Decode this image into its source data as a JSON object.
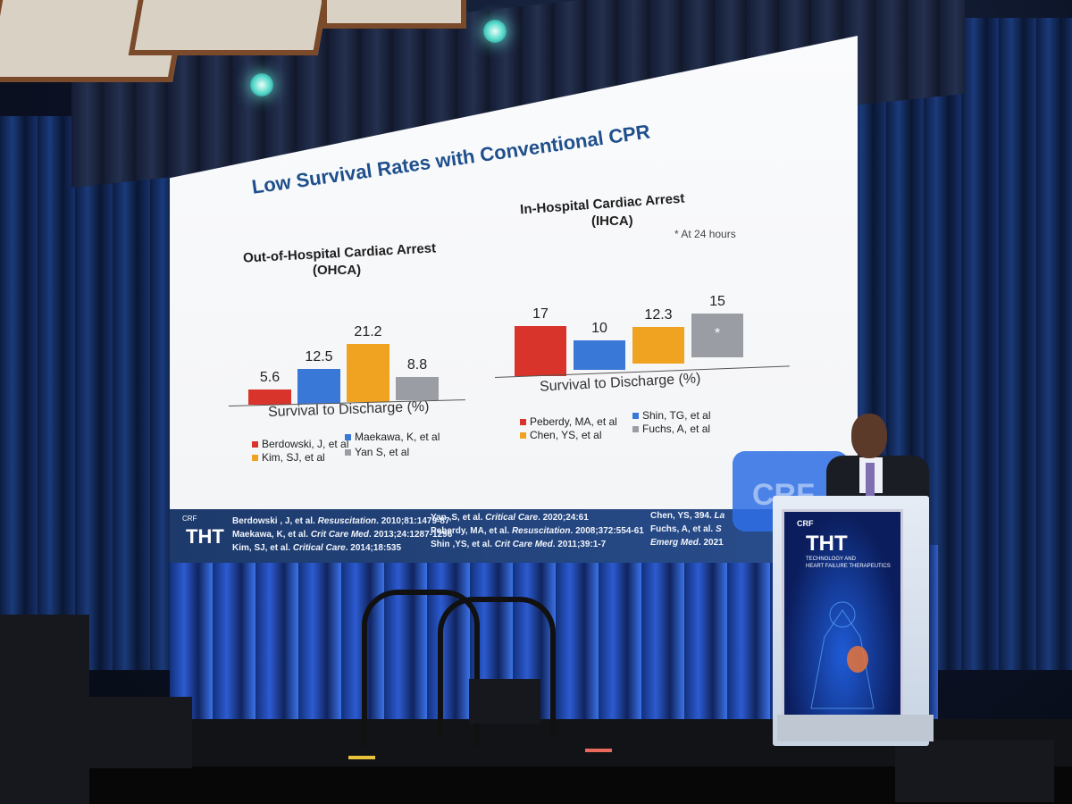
{
  "slide": {
    "title": "Low Survival Rates with Conventional CPR",
    "ohca": {
      "heading_line1": "Out-of-Hospital Cardiac Arrest",
      "heading_line2": "(OHCA)",
      "xlabel": "Survival to Discharge (%)",
      "bars": [
        {
          "label": "5.6",
          "value": 5.6,
          "color": "#d9342b"
        },
        {
          "label": "12.5",
          "value": 12.5,
          "color": "#3a78d8"
        },
        {
          "label": "21.2",
          "value": 21.2,
          "color": "#f0a321"
        },
        {
          "label": "8.8",
          "value": 8.8,
          "color": "#9a9da3"
        }
      ],
      "legend": [
        "Berdowski, J, et al",
        "Maekawa, K, et al",
        "Kim, SJ, et al",
        "Yan S, et al"
      ]
    },
    "ihca": {
      "heading_line1": "In-Hospital Cardiac Arrest",
      "heading_line2": "(IHCA)",
      "note": "* At 24 hours",
      "xlabel": "Survival to Discharge (%)",
      "bars": [
        {
          "label": "17",
          "value": 17,
          "color": "#d9342b"
        },
        {
          "label": "10",
          "value": 10,
          "color": "#3a78d8"
        },
        {
          "label": "12.3",
          "value": 12.3,
          "color": "#f0a321"
        },
        {
          "label": "15",
          "value": 15,
          "color": "#9a9da3",
          "mark": "*"
        }
      ],
      "legend": [
        "Peberdy, MA, et al",
        "Shin, TG, et al",
        "Chen, YS, et al",
        "Fuchs, A, et al"
      ]
    },
    "references": {
      "col1": [
        {
          "pre": "Berdowski , J, et al. ",
          "journal": "Resuscitation",
          "post": ". 2010;81:1479-87"
        },
        {
          "pre": "Maekawa, K, et al. ",
          "journal": "Crit Care Med",
          "post": ". 2013;24:1287-1296"
        },
        {
          "pre": "Kim, SJ, et al. ",
          "journal": "Critical Care",
          "post": ". 2014;18:535"
        }
      ],
      "col2": [
        {
          "pre": "Yan ,S, et al. ",
          "journal": "Critical Care",
          "post": ". 2020;24:61"
        },
        {
          "pre": "Peberdy, MA, et al. ",
          "journal": "Resuscitation",
          "post": ". 2008;372:554-61"
        },
        {
          "pre": "Shin ,YS, et al. ",
          "journal": "Crit Care Med",
          "post": ". 2011;39:1-7"
        }
      ],
      "col3": [
        {
          "pre": "Chen, YS, 394. ",
          "journal": "La",
          "post": ""
        },
        {
          "pre": "Fuchs, A, et al. ",
          "journal": "S",
          "post": ""
        },
        {
          "pre": "",
          "journal": "Emerg Med",
          "post": ". 2021"
        }
      ]
    },
    "brand": {
      "crf": "CRF",
      "tht": "THT"
    }
  },
  "podium": {
    "crf": "CRF",
    "tht": "THT",
    "tagline1": "TECHNOLOGY AND",
    "tagline2": "HEART FAILURE THERAPEUTICS"
  },
  "backdrop_text": "CRF"
}
